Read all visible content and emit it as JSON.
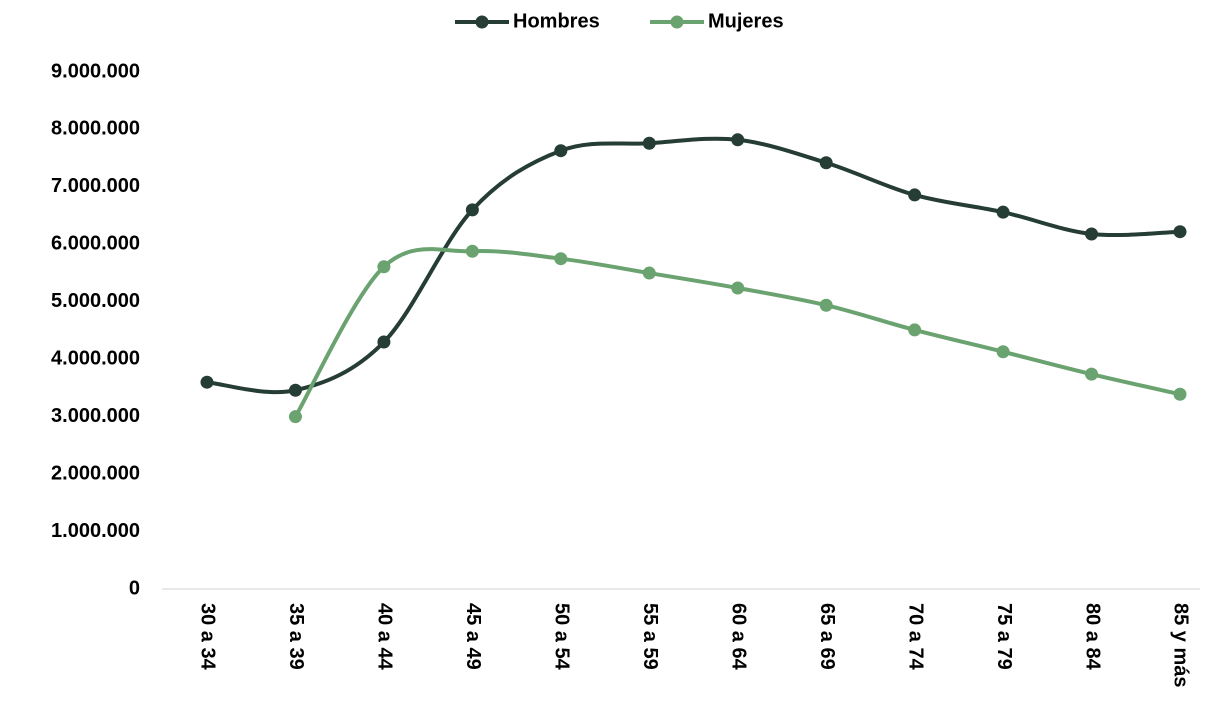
{
  "chart_data": {
    "type": "line",
    "categories": [
      "30 a 34",
      "35 a 39",
      "40 a 44",
      "45 a 49",
      "50 a 54",
      "55 a 59",
      "60 a 64",
      "65 a 69",
      "70 a 74",
      "75 a 79",
      "80 a 84",
      "85 y más"
    ],
    "series": [
      {
        "name": "Hombres",
        "color": "#253d35",
        "values": [
          3600000,
          3460000,
          4300000,
          6600000,
          7630000,
          7760000,
          7820000,
          7420000,
          6860000,
          6560000,
          6180000,
          6220000
        ]
      },
      {
        "name": "Mujeres",
        "color": "#6aa36f",
        "values": [
          null,
          3000000,
          5610000,
          5880000,
          5750000,
          5500000,
          5240000,
          4940000,
          4510000,
          4130000,
          3740000,
          3390000
        ]
      }
    ],
    "ylim": [
      0,
      9000000
    ],
    "yticks": [
      0,
      {
        "value": 1000000,
        "label": "1.000.000"
      },
      {
        "value": 2000000,
        "label": "2.000.000"
      },
      {
        "value": 3000000,
        "label": "3.000.000"
      },
      {
        "value": 4000000,
        "label": "4.000.000"
      },
      {
        "value": 5000000,
        "label": "5.000.000"
      },
      {
        "value": 6000000,
        "label": "6.000.000"
      },
      {
        "value": 7000000,
        "label": "7.000.000"
      },
      {
        "value": 8000000,
        "label": "8.000.000"
      },
      {
        "value": 9000000,
        "label": "9.000.000"
      }
    ],
    "legend": "top",
    "smooth": true
  }
}
